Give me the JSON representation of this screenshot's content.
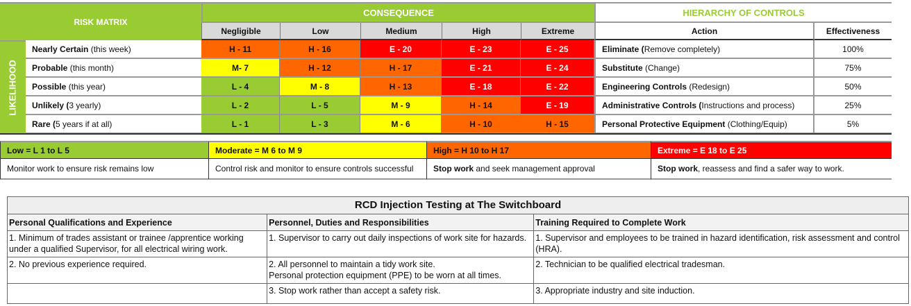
{
  "matrix": {
    "title": "RISK MATRIX",
    "consequence": "CONSEQUENCE",
    "likelihood": "LIKELIHOOD",
    "columns": [
      "Negligible",
      "Low",
      "Medium",
      "High",
      "Extreme"
    ],
    "rows": [
      {
        "bold": "Nearly Certain",
        "rest": " (this week)",
        "cells": [
          "H - 11",
          "H - 16",
          "E - 20",
          "E - 23",
          "E - 25"
        ]
      },
      {
        "bold": "Probable",
        "rest": " (this month)",
        "cells": [
          "M- 7",
          "H - 12",
          "H - 17",
          "E - 21",
          "E - 24"
        ]
      },
      {
        "bold": "Possible",
        "rest": " (this year)",
        "cells": [
          "L - 4",
          "M - 8",
          "H - 13",
          "E - 18",
          "E - 22"
        ]
      },
      {
        "bold": "Unlikely (",
        "rest": "3 yearly)",
        "cells": [
          "L - 2",
          "L - 5",
          "M - 9",
          "H - 14",
          "E - 19"
        ]
      },
      {
        "bold": "Rare (",
        "rest": "5 years if at all)",
        "cells": [
          "L - 1",
          "L - 3",
          "M - 6",
          "H - 10",
          "H - 15"
        ]
      }
    ]
  },
  "controls": {
    "title": "HIERARCHY OF CONTROLS",
    "action_header": "Action",
    "effectiveness_header": "Effectiveness",
    "rows": [
      {
        "bold": "Eliminate (",
        "rest": "Remove completely)",
        "value": "100%"
      },
      {
        "bold": "Substitute",
        "rest": " (Change)",
        "value": "75%"
      },
      {
        "bold": "Engineering Controls",
        "rest": " (Redesign)",
        "value": "50%"
      },
      {
        "bold": "Administrative Controls (",
        "rest": "Instructions and process)",
        "value": "25%"
      },
      {
        "bold": "Personal Protective Equipment",
        "rest": " (Clothing/Equip)",
        "value": "5%"
      }
    ]
  },
  "legend": [
    {
      "label": "Low = L 1 to L 5",
      "bold": "",
      "desc": "Monitor work to ensure risk remains low",
      "color": "#99cc33"
    },
    {
      "label": "Moderate = M 6 to M 9",
      "bold": "",
      "desc": "Control risk and monitor to ensure controls successful",
      "color": "#ffff00"
    },
    {
      "label": "High = H 10 to H 17",
      "bold": "Stop work",
      "desc": " and seek management approval",
      "color": "#ff6600"
    },
    {
      "label": "Extreme = E 18 to E 25",
      "bold": "Stop work",
      "desc": ", reassess and find a safer way to work.",
      "color": "#ff0000"
    }
  ],
  "task": {
    "title": "RCD Injection Testing at The Switchboard",
    "headers": [
      "Personal Qualifications and Experience",
      "Personnel, Duties and Responsibilities",
      "Training Required to Complete Work"
    ],
    "rows": [
      [
        "1.  Minimum of trades assistant or trainee /apprentice working under a qualified Supervisor, for all electrical wiring work.",
        "1.  Supervisor to carry out daily inspections of work site for hazards.",
        "1.  Supervisor and employees to be trained in hazard identification, risk assessment and control (HRA)."
      ],
      [
        "2.  No previous experience required.",
        "2.  All personnel to maintain a tidy work site.\nPersonal protection equipment (PPE) to be worn at all times.",
        "2.  Technician to be qualified electrical tradesman."
      ],
      [
        "",
        "3.  Stop work rather than accept a safety risk.",
        "3.  Appropriate industry and site induction."
      ]
    ]
  }
}
